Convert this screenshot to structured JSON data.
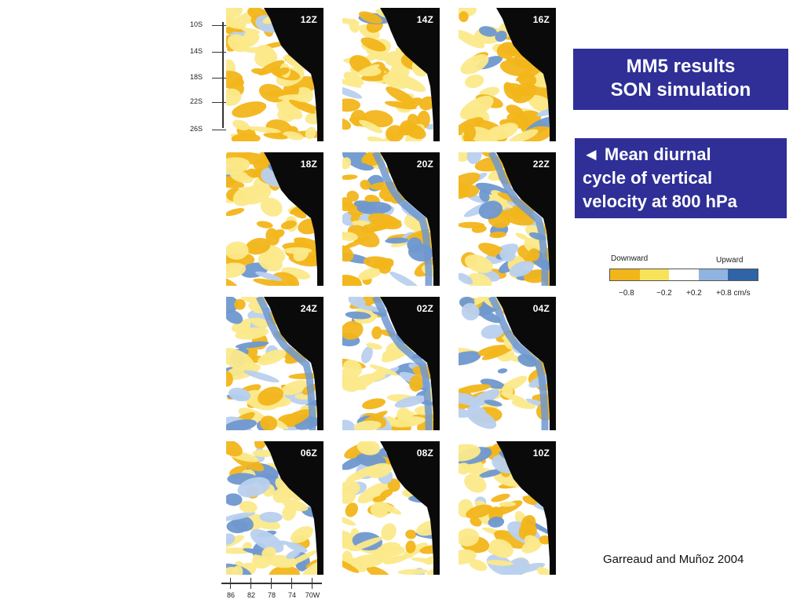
{
  "latitude_axis": [
    "10S",
    "14S",
    "18S",
    "22S",
    "26S"
  ],
  "longitude_axis": [
    "86",
    "82",
    "78",
    "74",
    "70W"
  ],
  "panels": [
    "12Z",
    "14Z",
    "16Z",
    "18Z",
    "20Z",
    "22Z",
    "24Z",
    "02Z",
    "04Z",
    "06Z",
    "08Z",
    "10Z"
  ],
  "title": {
    "line1": "MM5 results",
    "line2": "SON simulation"
  },
  "description": {
    "line1": "◄ Mean diurnal",
    "line2": "cycle of vertical",
    "line3": "velocity at 800 hPa"
  },
  "legend": {
    "downward": "Downward",
    "upward": "Upward",
    "ticks": [
      "−0.8",
      "−0.2",
      "+0.2",
      "+0.8 cm/s"
    ],
    "colors": [
      "#f2b51a",
      "#f7e35a",
      "#ffffff",
      "#8fb4df",
      "#2f64a6"
    ]
  },
  "colors": {
    "box_background": "#2f2f97",
    "downward_strong": "#f2b51a",
    "downward_weak": "#fbe98a",
    "upward_weak": "#b8d0ee",
    "upward_strong": "#6f98cf",
    "land": "#0a0a0a"
  },
  "citation": "Garreaud and Muñoz 2004"
}
